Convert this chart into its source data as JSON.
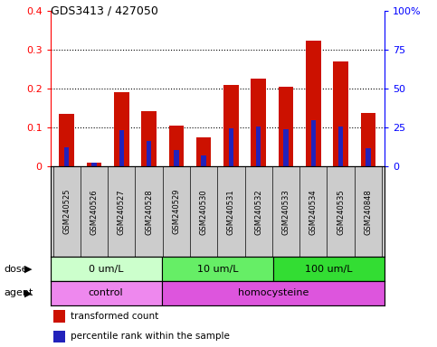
{
  "title": "GDS3413 / 427050",
  "samples": [
    "GSM240525",
    "GSM240526",
    "GSM240527",
    "GSM240528",
    "GSM240529",
    "GSM240530",
    "GSM240531",
    "GSM240532",
    "GSM240533",
    "GSM240534",
    "GSM240535",
    "GSM240848"
  ],
  "red_values": [
    0.135,
    0.01,
    0.19,
    0.143,
    0.105,
    0.075,
    0.208,
    0.225,
    0.205,
    0.323,
    0.27,
    0.138
  ],
  "blue_values": [
    0.05,
    0.01,
    0.093,
    0.065,
    0.043,
    0.028,
    0.098,
    0.103,
    0.096,
    0.118,
    0.103,
    0.048
  ],
  "ylim_left": [
    0,
    0.4
  ],
  "ylim_right": [
    0,
    100
  ],
  "yticks_left": [
    0,
    0.1,
    0.2,
    0.3,
    0.4
  ],
  "yticks_right": [
    0,
    25,
    50,
    75,
    100
  ],
  "ytick_labels_left": [
    "0",
    "0.1",
    "0.2",
    "0.3",
    "0.4"
  ],
  "ytick_labels_right": [
    "0",
    "25",
    "50",
    "75",
    "100%"
  ],
  "dose_groups": [
    {
      "label": "0 um/L",
      "start": 0,
      "end": 4,
      "color": "#ccffcc"
    },
    {
      "label": "10 um/L",
      "start": 4,
      "end": 8,
      "color": "#66ee66"
    },
    {
      "label": "100 um/L",
      "start": 8,
      "end": 12,
      "color": "#33dd33"
    }
  ],
  "agent_groups": [
    {
      "label": "control",
      "start": 0,
      "end": 4,
      "color": "#ee88ee"
    },
    {
      "label": "homocysteine",
      "start": 4,
      "end": 12,
      "color": "#dd55dd"
    }
  ],
  "red_color": "#cc1100",
  "blue_color": "#2222bb",
  "bar_width": 0.55,
  "blue_bar_width": 0.18,
  "sample_bg": "#cccccc",
  "legend_items": [
    "transformed count",
    "percentile rank within the sample"
  ]
}
